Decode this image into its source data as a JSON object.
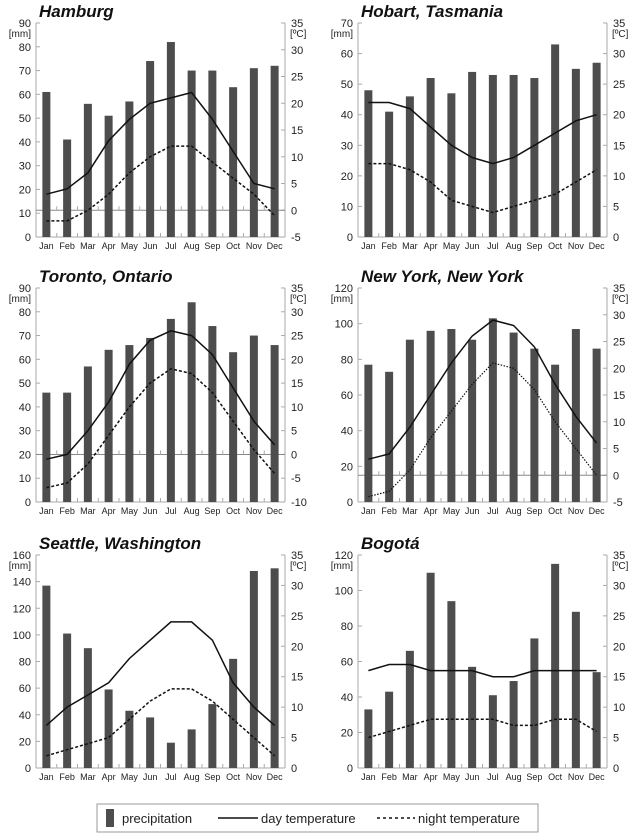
{
  "colors": {
    "bar": "#4d4d4d",
    "line": "#111111",
    "axis": "#aaaaaa"
  },
  "legend": {
    "precipitation": "precipitation",
    "day": "day temperature",
    "night": "night temperature"
  },
  "chart_data": [
    {
      "type": "bar+line",
      "title": "Hamburg",
      "categories": [
        "Jan",
        "Feb",
        "Mar",
        "Apr",
        "May",
        "Jun",
        "Jul",
        "Aug",
        "Sep",
        "Oct",
        "Nov",
        "Dec"
      ],
      "ylabel_left": "[mm]",
      "ylabel_right": "[ºC]",
      "ylim_left": [
        0,
        90
      ],
      "ylim_right": [
        -5,
        35
      ],
      "left_ticks": [
        "0",
        "10",
        "20",
        "30",
        "40",
        "50",
        "60",
        "70",
        "80",
        "90"
      ],
      "right_ticks": [
        "-5",
        "0",
        "5",
        "10",
        "15",
        "20",
        "25",
        "30",
        "35"
      ],
      "series": [
        {
          "name": "precipitation",
          "type": "bar",
          "axis": "left",
          "values": [
            61,
            41,
            56,
            51,
            57,
            74,
            82,
            70,
            70,
            63,
            71,
            72
          ]
        },
        {
          "name": "day temperature",
          "type": "line",
          "axis": "right",
          "values": [
            3,
            4,
            7,
            13,
            17,
            20,
            21,
            22,
            17,
            11,
            5,
            4
          ]
        },
        {
          "name": "night temperature",
          "type": "dashed-line",
          "axis": "right",
          "values": [
            -2,
            -2,
            0,
            3,
            7,
            10,
            12,
            12,
            9,
            6,
            3,
            -1
          ]
        }
      ]
    },
    {
      "type": "bar+line",
      "title": "Hobart, Tasmania",
      "categories": [
        "Jan",
        "Feb",
        "Mar",
        "Apr",
        "May",
        "Jun",
        "Jul",
        "Aug",
        "Sep",
        "Oct",
        "Nov",
        "Dec"
      ],
      "ylabel_left": "[mm]",
      "ylabel_right": "[ºC]",
      "ylim_left": [
        0,
        70
      ],
      "ylim_right": [
        0,
        35
      ],
      "left_ticks": [
        "0",
        "10",
        "20",
        "30",
        "40",
        "50",
        "60",
        "70"
      ],
      "right_ticks": [
        "0",
        "5",
        "10",
        "15",
        "20",
        "25",
        "30",
        "35"
      ],
      "series": [
        {
          "name": "precipitation",
          "type": "bar",
          "axis": "left",
          "values": [
            48,
            41,
            46,
            52,
            47,
            54,
            53,
            53,
            52,
            63,
            55,
            57
          ]
        },
        {
          "name": "day temperature",
          "type": "line",
          "axis": "right",
          "values": [
            22,
            22,
            21,
            18,
            15,
            13,
            12,
            13,
            15,
            17,
            19,
            20
          ]
        },
        {
          "name": "night temperature",
          "type": "dashed-line",
          "axis": "right",
          "values": [
            12,
            12,
            11,
            9,
            6,
            5,
            4,
            5,
            6,
            7,
            9,
            11
          ]
        }
      ]
    },
    {
      "type": "bar+line",
      "title": "Toronto, Ontario",
      "categories": [
        "Jan",
        "Feb",
        "Mar",
        "Apr",
        "May",
        "Jun",
        "Jul",
        "Aug",
        "Sep",
        "Oct",
        "Nov",
        "Dec"
      ],
      "ylabel_left": "[mm]",
      "ylabel_right": "[ºC]",
      "ylim_left": [
        0,
        90
      ],
      "ylim_right": [
        -10,
        35
      ],
      "left_ticks": [
        "0",
        "10",
        "20",
        "30",
        "40",
        "50",
        "60",
        "70",
        "80",
        "90"
      ],
      "right_ticks": [
        "-10",
        "-5",
        "0",
        "5",
        "10",
        "15",
        "20",
        "25",
        "30",
        "35"
      ],
      "series": [
        {
          "name": "precipitation",
          "type": "bar",
          "axis": "left",
          "values": [
            46,
            46,
            57,
            64,
            66,
            69,
            77,
            84,
            74,
            63,
            70,
            66
          ]
        },
        {
          "name": "day temperature",
          "type": "line",
          "axis": "right",
          "values": [
            -1,
            0,
            5,
            11,
            19,
            24,
            26,
            25,
            21,
            14,
            7,
            2
          ]
        },
        {
          "name": "night temperature",
          "type": "dashed-line",
          "axis": "right",
          "values": [
            -7,
            -6,
            -2,
            4,
            10,
            15,
            18,
            17,
            13,
            7,
            1,
            -4
          ]
        }
      ]
    },
    {
      "type": "bar+line",
      "title": "New York, New York",
      "categories": [
        "Jan",
        "Feb",
        "Mar",
        "Apr",
        "May",
        "Jun",
        "Jul",
        "Aug",
        "Sep",
        "Oct",
        "Nov",
        "Dec"
      ],
      "ylabel_left": "[mm]",
      "ylabel_right": "[ºC]",
      "ylim_left": [
        0,
        120
      ],
      "ylim_right": [
        -5,
        35
      ],
      "left_ticks": [
        "0",
        "20",
        "40",
        "60",
        "80",
        "100",
        "120"
      ],
      "right_ticks": [
        "-5",
        "0",
        "5",
        "10",
        "15",
        "20",
        "25",
        "30",
        "35"
      ],
      "series": [
        {
          "name": "precipitation",
          "type": "bar",
          "axis": "left",
          "values": [
            77,
            73,
            91,
            96,
            97,
            91,
            103,
            95,
            86,
            77,
            97,
            86
          ]
        },
        {
          "name": "day temperature",
          "type": "line",
          "axis": "right",
          "values": [
            3,
            4,
            9,
            15,
            21,
            26,
            29,
            28,
            24,
            17,
            11,
            6
          ]
        },
        {
          "name": "night temperature",
          "type": "dotted-line",
          "axis": "right",
          "values": [
            -4,
            -3,
            1,
            7,
            12,
            17,
            21,
            20,
            16,
            10,
            5,
            0
          ]
        }
      ]
    },
    {
      "type": "bar+line",
      "title": "Seattle, Washington",
      "categories": [
        "Jan",
        "Feb",
        "Mar",
        "Apr",
        "May",
        "Jun",
        "Jul",
        "Aug",
        "Sep",
        "Oct",
        "Nov",
        "Dec"
      ],
      "ylabel_left": "[mm]",
      "ylabel_right": "[ºC]",
      "ylim_left": [
        0,
        160
      ],
      "ylim_right": [
        0,
        35
      ],
      "left_ticks": [
        "0",
        "20",
        "40",
        "60",
        "80",
        "100",
        "120",
        "140",
        "160"
      ],
      "right_ticks": [
        "0",
        "5",
        "10",
        "15",
        "20",
        "25",
        "30",
        "35"
      ],
      "series": [
        {
          "name": "precipitation",
          "type": "bar",
          "axis": "left",
          "values": [
            137,
            101,
            90,
            59,
            43,
            38,
            19,
            29,
            48,
            82,
            148,
            150
          ]
        },
        {
          "name": "day temperature",
          "type": "line",
          "axis": "right",
          "values": [
            7,
            10,
            12,
            14,
            18,
            21,
            24,
            24,
            21,
            14,
            10,
            7
          ]
        },
        {
          "name": "night temperature",
          "type": "dashed-line",
          "axis": "right",
          "values": [
            2,
            3,
            4,
            5,
            8,
            11,
            13,
            13,
            11,
            8,
            5,
            2
          ]
        }
      ]
    },
    {
      "type": "bar+line",
      "title": "Bogotá",
      "categories": [
        "Jan",
        "Feb",
        "Mar",
        "Apr",
        "May",
        "Jun",
        "Jul",
        "Aug",
        "Sep",
        "Oct",
        "Nov",
        "Dec"
      ],
      "ylabel_left": "[mm]",
      "ylabel_right": "[ºC]",
      "ylim_left": [
        0,
        120
      ],
      "ylim_right": [
        0,
        35
      ],
      "left_ticks": [
        "0",
        "20",
        "40",
        "60",
        "80",
        "100",
        "120"
      ],
      "right_ticks": [
        "0",
        "5",
        "10",
        "15",
        "20",
        "25",
        "30",
        "35"
      ],
      "series": [
        {
          "name": "precipitation",
          "type": "bar",
          "axis": "left",
          "values": [
            33,
            43,
            66,
            110,
            94,
            57,
            41,
            49,
            73,
            115,
            88,
            54
          ]
        },
        {
          "name": "day temperature",
          "type": "line",
          "axis": "right",
          "values": [
            16,
            17,
            17,
            16,
            16,
            16,
            15,
            15,
            16,
            16,
            16,
            16
          ]
        },
        {
          "name": "night temperature",
          "type": "dashed-line",
          "axis": "right",
          "values": [
            5,
            6,
            7,
            8,
            8,
            8,
            8,
            7,
            7,
            8,
            8,
            6
          ]
        }
      ]
    }
  ]
}
